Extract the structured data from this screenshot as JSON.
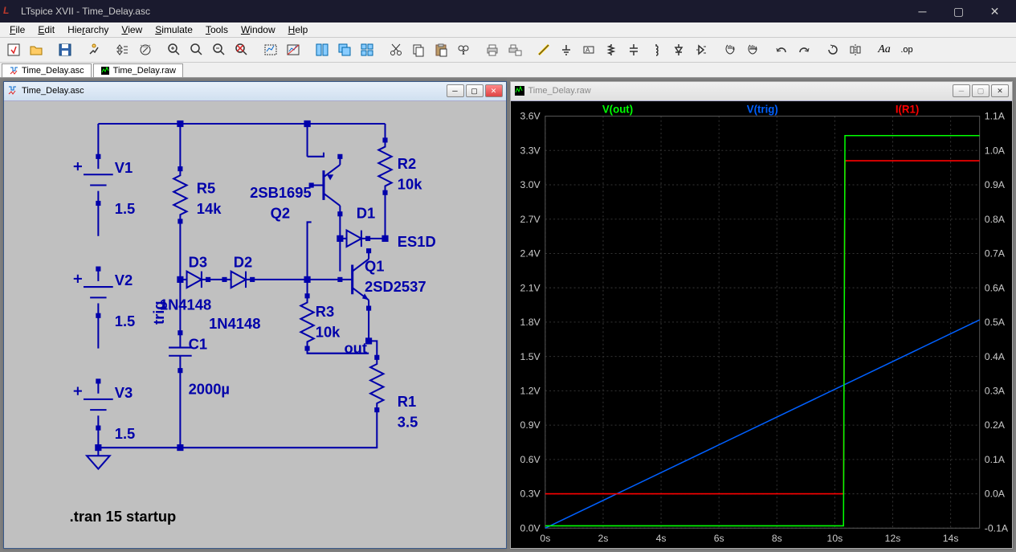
{
  "app": {
    "title": "LTspice XVII - Time_Delay.asc"
  },
  "menus": [
    "File",
    "Edit",
    "Hierarchy",
    "View",
    "Simulate",
    "Tools",
    "Window",
    "Help"
  ],
  "tabs": [
    {
      "name": "Time_Delay.asc",
      "icon": "schematic"
    },
    {
      "name": "Time_Delay.raw",
      "icon": "waveform"
    }
  ],
  "mdi": {
    "schematic": {
      "title": "Time_Delay.asc"
    },
    "waveform": {
      "title": "Time_Delay.raw"
    }
  },
  "schematic": {
    "components": {
      "V1": {
        "name": "V1",
        "value": "1.5"
      },
      "V2": {
        "name": "V2",
        "value": "1.5"
      },
      "V3": {
        "name": "V3",
        "value": "1.5"
      },
      "R5": {
        "name": "R5",
        "value": "14k"
      },
      "R2": {
        "name": "R2",
        "value": "10k"
      },
      "R3": {
        "name": "R3",
        "value": "10k"
      },
      "R1": {
        "name": "R1",
        "value": "3.5"
      },
      "C1": {
        "name": "C1",
        "value": "2000µ"
      },
      "D3": {
        "name": "D3",
        "value": "1N4148"
      },
      "D2": {
        "name": "D2",
        "value": "1N4148"
      },
      "D1": {
        "name": "D1",
        "value": "ES1D"
      },
      "Q2": {
        "name": "Q2",
        "value": "2SB1695"
      },
      "Q1": {
        "name": "Q1",
        "value": "2SD2537"
      }
    },
    "nets": {
      "trig": "trig",
      "out": "out"
    },
    "directive": ".tran 15 startup"
  },
  "waveform": {
    "traces": [
      {
        "label": "V(out)",
        "color": "#00ff00"
      },
      {
        "label": "V(trig)",
        "color": "#0060ff"
      },
      {
        "label": "I(R1)",
        "color": "#ff0000"
      }
    ],
    "xaxis": {
      "min": 0,
      "max": 15,
      "step": 2,
      "unit": "s"
    },
    "yaxis_left": {
      "min": 0.0,
      "max": 3.6,
      "step": 0.3,
      "unit": "V"
    },
    "yaxis_right": {
      "min": -0.1,
      "max": 1.1,
      "step": 0.1,
      "unit": "A"
    },
    "data": {
      "vout": {
        "t": [
          0,
          10.3,
          10.35,
          15
        ],
        "v": [
          0.02,
          0.02,
          3.43,
          3.43
        ]
      },
      "vtrig": {
        "t": [
          0,
          15
        ],
        "v": [
          0.0,
          1.82
        ]
      },
      "ir1": {
        "t": [
          0,
          10.3,
          10.35,
          15
        ],
        "v": [
          0.0,
          0.0,
          0.97,
          0.97
        ]
      }
    },
    "colors": {
      "bg": "#000000",
      "grid": "#2a2a2a",
      "axis_text": "#cccccc"
    }
  }
}
